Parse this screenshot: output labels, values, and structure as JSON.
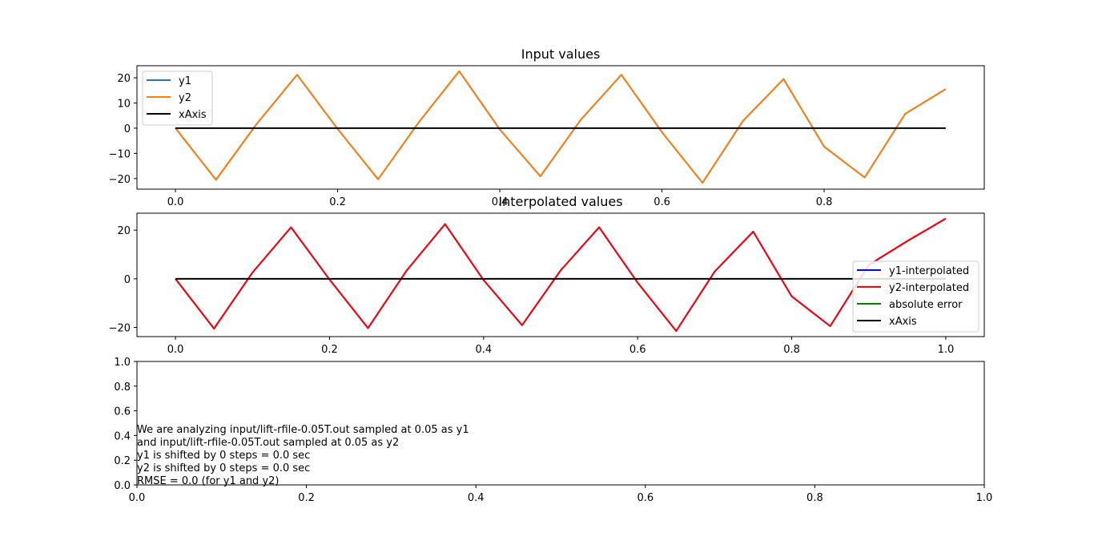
{
  "chart_data": [
    {
      "type": "line",
      "title": "Input values",
      "xlim": [
        -0.0475,
        0.9975
      ],
      "ylim": [
        -24.2,
        24.8
      ],
      "x_ticks": [
        "0.0",
        "0.2",
        "0.4",
        "0.6",
        "0.8"
      ],
      "y_ticks": [
        "−20",
        "−10",
        "0",
        "10",
        "20"
      ],
      "legend_position": "upper-left",
      "series": [
        {
          "name": "y1",
          "color": "#1f77b4",
          "x": [
            0,
            0.05,
            0.1,
            0.15,
            0.2,
            0.25,
            0.3,
            0.35,
            0.4,
            0.45,
            0.5,
            0.55,
            0.6,
            0.65,
            0.7,
            0.75,
            0.8,
            0.85,
            0.9,
            0.95
          ],
          "y": [
            0,
            -20.5,
            1.6,
            21.2,
            -0.3,
            -20.3,
            2.3,
            22.6,
            -0.5,
            -19.1,
            3.4,
            21.2,
            -1.6,
            -21.7,
            2.9,
            19.5,
            -7.3,
            -19.6,
            5.7,
            15.5
          ]
        },
        {
          "name": "y2",
          "color": "#ff7f0e",
          "x": [
            0,
            0.05,
            0.1,
            0.15,
            0.2,
            0.25,
            0.3,
            0.35,
            0.4,
            0.45,
            0.5,
            0.55,
            0.6,
            0.65,
            0.7,
            0.75,
            0.8,
            0.85,
            0.9,
            0.95
          ],
          "y": [
            0,
            -20.5,
            1.6,
            21.2,
            -0.3,
            -20.3,
            2.3,
            22.6,
            -0.5,
            -19.1,
            3.4,
            21.2,
            -1.6,
            -21.7,
            2.9,
            19.5,
            -7.3,
            -19.6,
            5.7,
            15.5
          ]
        },
        {
          "name": "xAxis",
          "color": "#000000",
          "x": [
            0,
            0.95
          ],
          "y": [
            0,
            0
          ]
        }
      ]
    },
    {
      "type": "line",
      "title": "Interpolated values",
      "xlim": [
        -0.05,
        1.05
      ],
      "ylim": [
        -23.8,
        27.0
      ],
      "x_ticks": [
        "0.0",
        "0.2",
        "0.4",
        "0.6",
        "0.8",
        "1.0"
      ],
      "y_ticks": [
        "−20",
        "0",
        "20"
      ],
      "legend_position": "lower-right",
      "series": [
        {
          "name": "y1-interpolated",
          "color": "#0000ff",
          "x": [
            0,
            0.05,
            0.1,
            0.15,
            0.2,
            0.25,
            0.3,
            0.35,
            0.4,
            0.45,
            0.5,
            0.55,
            0.6,
            0.65,
            0.7,
            0.75,
            0.8,
            0.85,
            0.9,
            0.95,
            1.0
          ],
          "y": [
            0,
            -20.5,
            2.6,
            21.2,
            -0.3,
            -20.3,
            3.3,
            22.5,
            -0.5,
            -19.1,
            3.4,
            21.2,
            -1.6,
            -21.5,
            3.0,
            19.4,
            -7.2,
            -19.5,
            5.7,
            15.5,
            24.8
          ]
        },
        {
          "name": "y2-interpolated",
          "color": "#ff0000",
          "x": [
            0,
            0.05,
            0.1,
            0.15,
            0.2,
            0.25,
            0.3,
            0.35,
            0.4,
            0.45,
            0.5,
            0.55,
            0.6,
            0.65,
            0.7,
            0.75,
            0.8,
            0.85,
            0.9,
            0.95,
            1.0
          ],
          "y": [
            0,
            -20.5,
            2.6,
            21.2,
            -0.3,
            -20.3,
            3.3,
            22.5,
            -0.5,
            -19.1,
            3.4,
            21.2,
            -1.6,
            -21.5,
            3.0,
            19.4,
            -7.2,
            -19.5,
            5.7,
            15.5,
            24.8
          ]
        },
        {
          "name": "absolute error",
          "color": "#008000",
          "x": [],
          "y": []
        },
        {
          "name": "xAxis",
          "color": "#000000",
          "x": [
            0,
            1.0
          ],
          "y": [
            0,
            0
          ]
        }
      ]
    },
    {
      "type": "line",
      "title": "",
      "xlim": [
        0,
        1
      ],
      "ylim": [
        0,
        1
      ],
      "x_ticks": [
        "0.0",
        "0.2",
        "0.4",
        "0.6",
        "0.8",
        "1.0"
      ],
      "y_ticks": [
        "0.0",
        "0.2",
        "0.4",
        "0.6",
        "0.8",
        "1.0"
      ],
      "series": [],
      "annotations": [
        "We are analyzing input/lift-rfile-0.05T.out sampled at 0.05 as y1",
        "and input/lift-rfile-0.05T.out sampled at 0.05 as y2",
        "y1 is shifted by 0 steps = 0.0 sec",
        "y2 is shifted by 0 steps = 0.0 sec",
        "RMSE = 0.0 (for y1 and y2)"
      ]
    }
  ]
}
